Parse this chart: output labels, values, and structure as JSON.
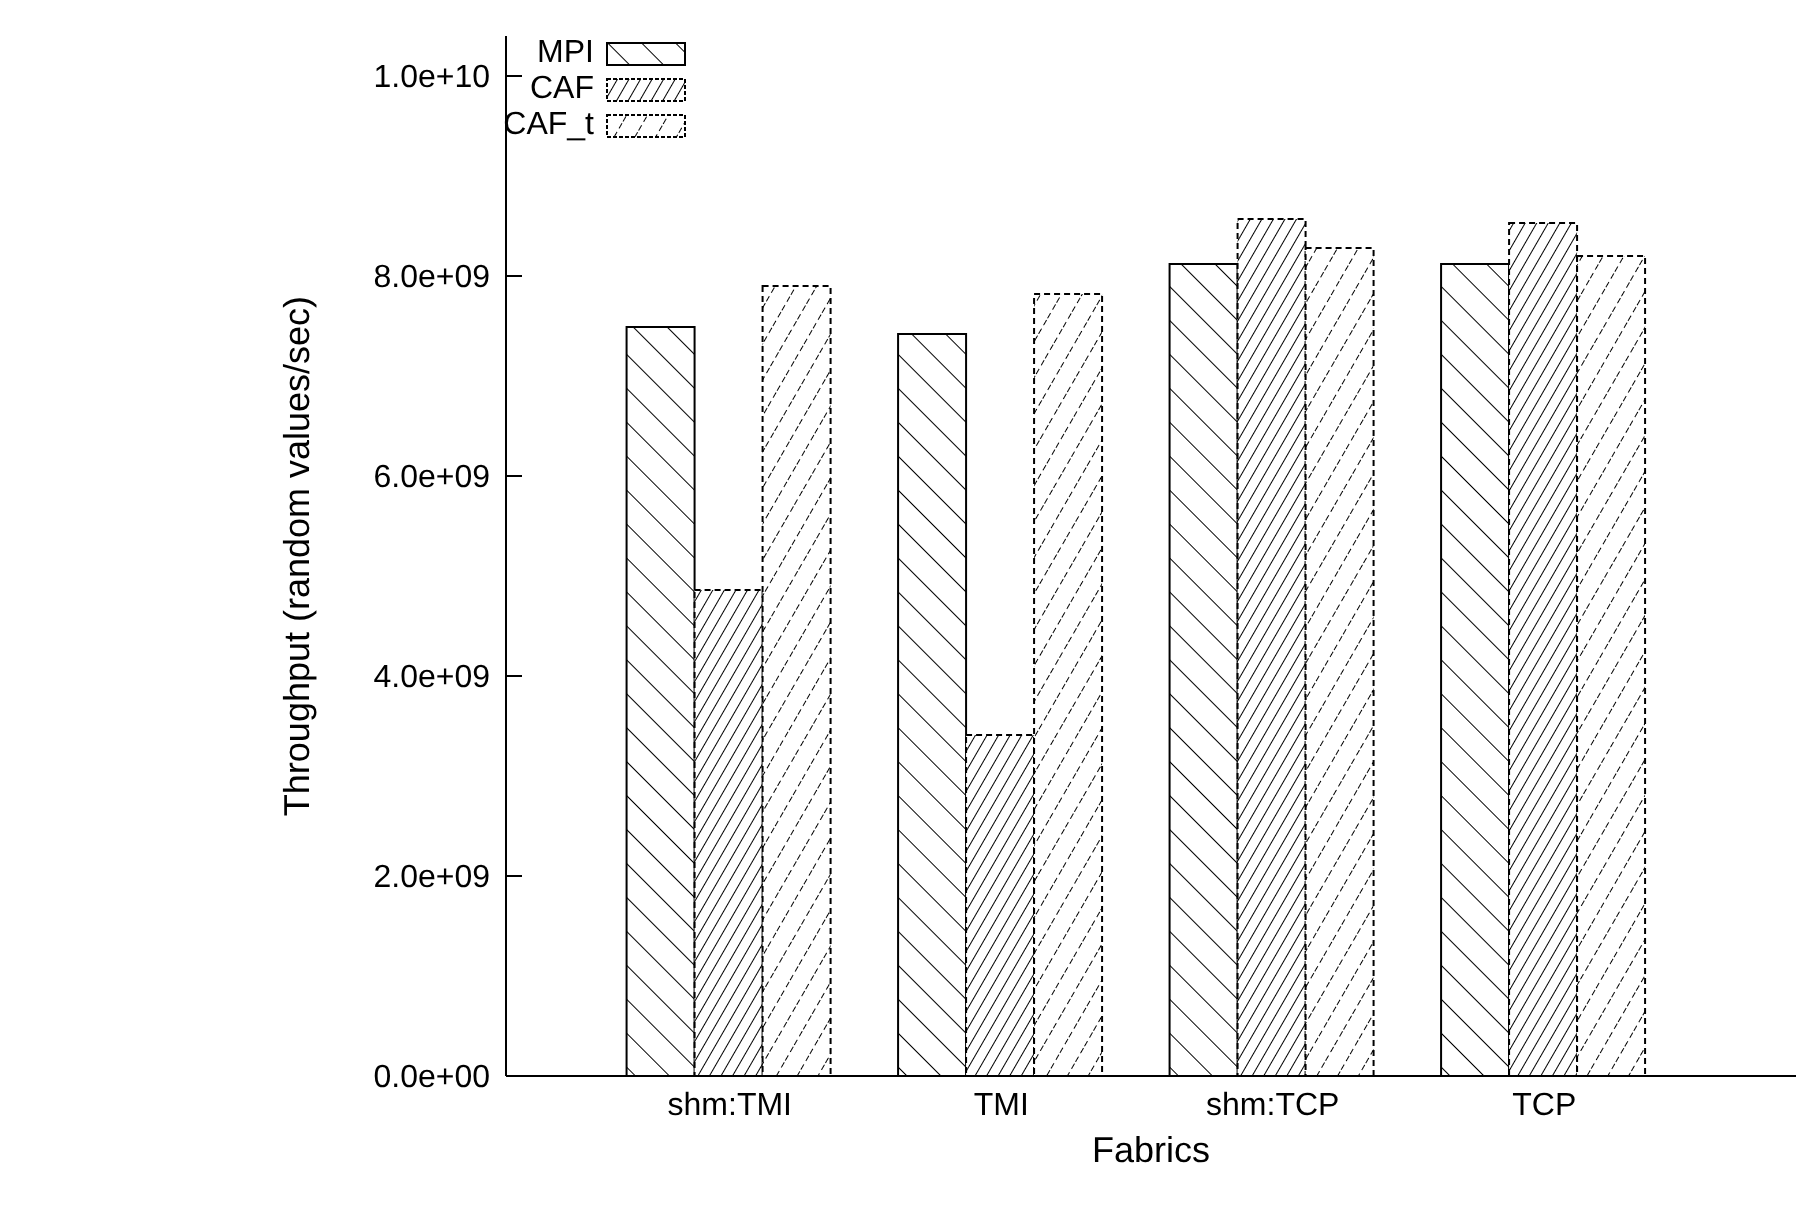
{
  "chart_data": {
    "type": "bar",
    "xlabel": "Fabrics",
    "ylabel": "Throughput (random values/sec)",
    "categories": [
      "shm:TMI",
      "TMI",
      "shm:TCP",
      "TCP"
    ],
    "series": [
      {
        "name": "MPI",
        "color": "#000000",
        "values": [
          7490000000.0,
          7420000000.0,
          8120000000.0,
          8120000000.0
        ]
      },
      {
        "name": "CAF",
        "color": "#000000",
        "values": [
          4860000000.0,
          3410000000.0,
          8570000000.0,
          8530000000.0
        ]
      },
      {
        "name": "CAF_t",
        "color": "#000000",
        "values": [
          7900000000.0,
          7820000000.0,
          8280000000.0,
          8200000000.0
        ]
      }
    ],
    "ylim": [
      0,
      10400000000.0
    ],
    "yticks": [
      {
        "value": 0,
        "label": "0.0e+00"
      },
      {
        "value": 2000000000.0,
        "label": "2.0e+09"
      },
      {
        "value": 4000000000.0,
        "label": "4.0e+09"
      },
      {
        "value": 6000000000.0,
        "label": "6.0e+09"
      },
      {
        "value": 8000000000.0,
        "label": "8.0e+09"
      },
      {
        "value": 10000000000.0,
        "label": "1.0e+10"
      }
    ],
    "grid": false,
    "legend": "top left"
  }
}
